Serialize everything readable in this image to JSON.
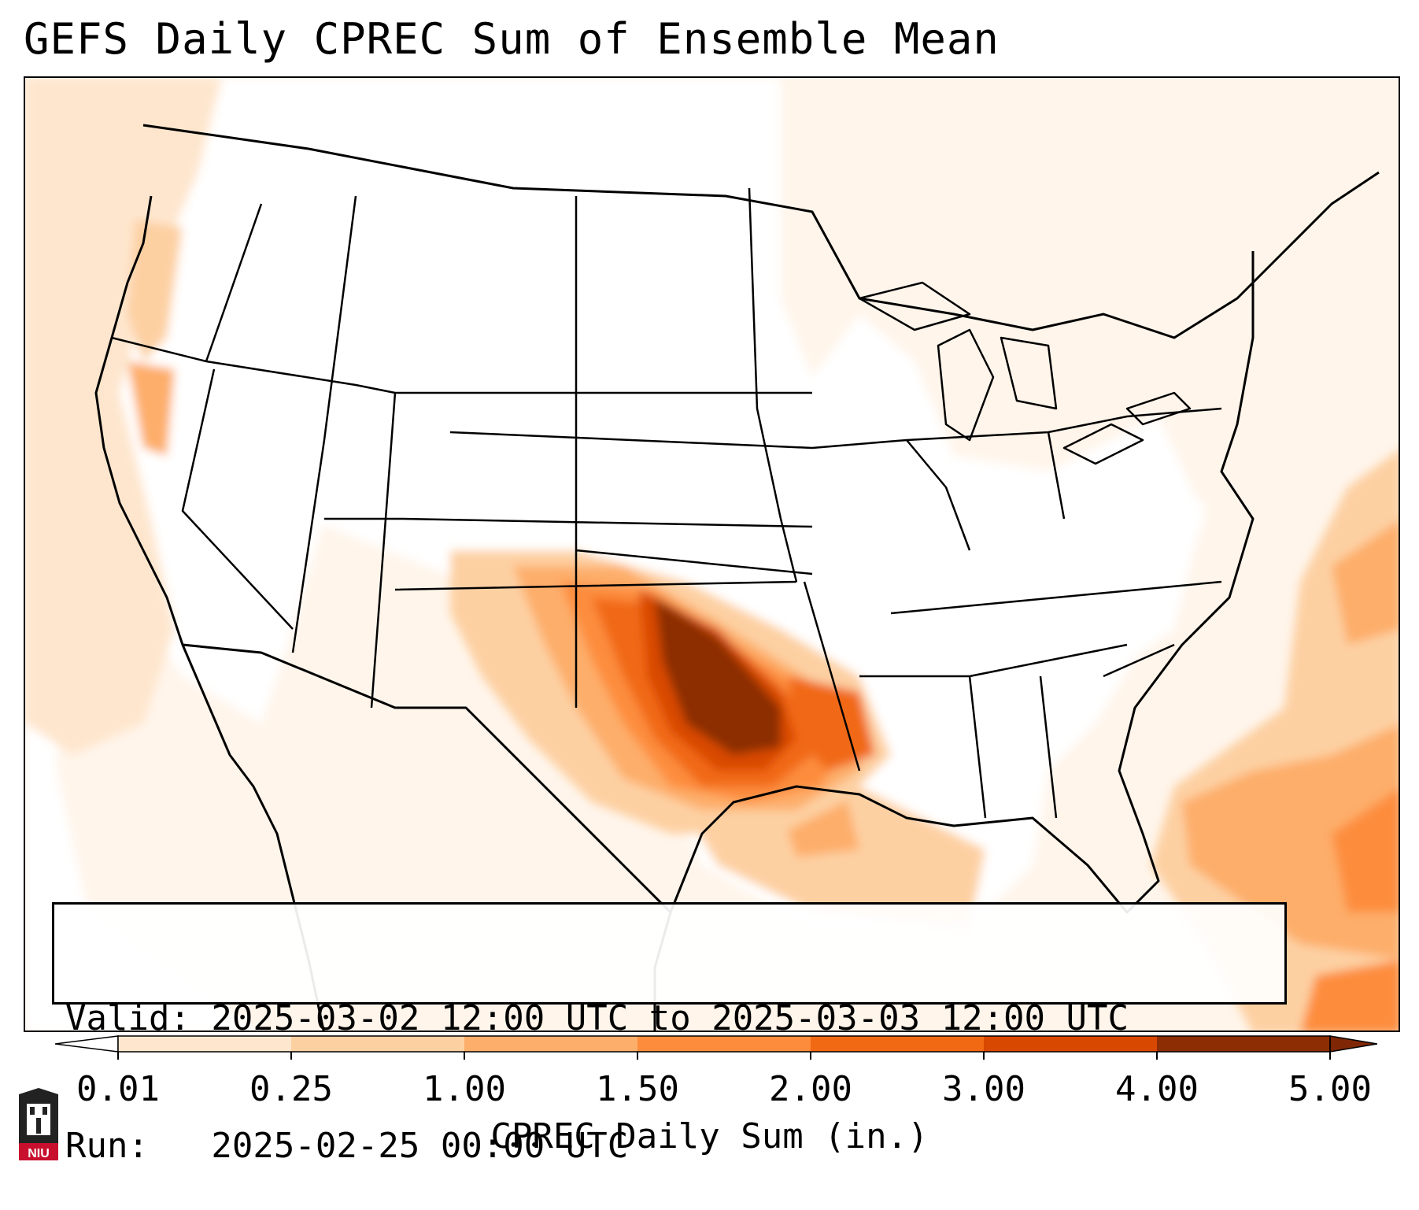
{
  "title": "GEFS Daily CPREC Sum of Ensemble Mean",
  "info": {
    "valid": "Valid: 2025-03-02 12:00 UTC to 2025-03-03 12:00 UTC",
    "run": "Run:   2025-02-25 00:00 UTC"
  },
  "colorbar": {
    "label": "CPREC Daily Sum (in.)",
    "ticks": [
      "0.01",
      "0.25",
      "1.00",
      "1.50",
      "2.00",
      "3.00",
      "4.00",
      "5.00"
    ],
    "colors": [
      "#fff5eb",
      "#fee6ce",
      "#fdd0a2",
      "#fdae6b",
      "#fd8d3c",
      "#f16913",
      "#d94801",
      "#8c2d04"
    ],
    "under_color": "#ffffff",
    "over_color": "#7f2704"
  },
  "logo_text": "NIU"
}
